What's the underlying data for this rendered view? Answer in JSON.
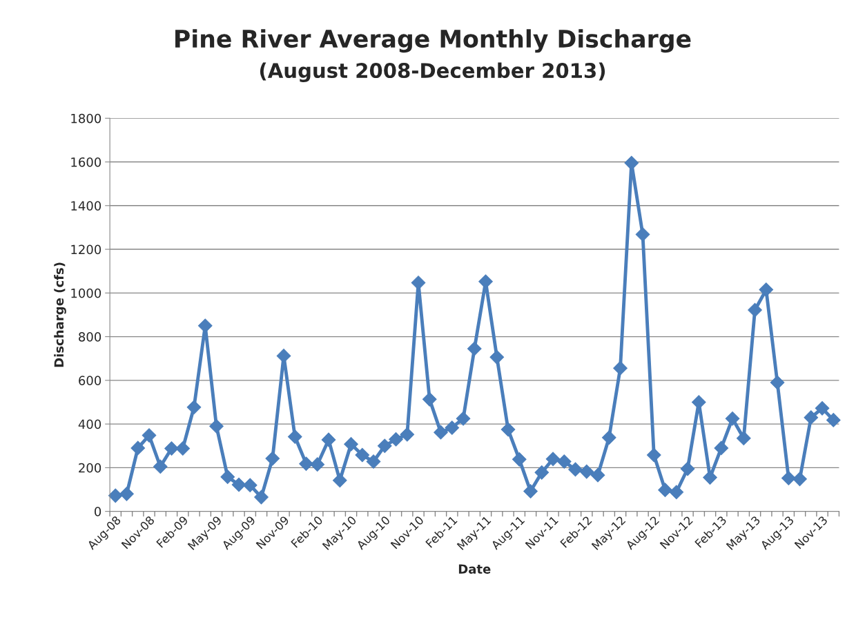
{
  "chart_data": {
    "type": "line",
    "title": "Pine River Average Monthly Discharge",
    "subtitle": "(August 2008-December 2013)",
    "xlabel": "Date",
    "ylabel": "Discharge (cfs)",
    "categories": [
      "Aug-08",
      null,
      null,
      "Nov-08",
      null,
      null,
      "Feb-09",
      null,
      null,
      "May-09",
      null,
      null,
      "Aug-09",
      null,
      null,
      "Nov-09",
      null,
      null,
      "Feb-10",
      null,
      null,
      "May-10",
      null,
      null,
      "Aug-10",
      null,
      null,
      "Nov-10",
      null,
      null,
      "Feb-11",
      null,
      null,
      "May-11",
      null,
      null,
      "Aug-11",
      null,
      null,
      "Nov-11",
      null,
      null,
      "Feb-12",
      null,
      null,
      "May-12",
      null,
      null,
      "Aug-12",
      null,
      null,
      "Nov-12",
      null,
      null,
      "Feb-13",
      null,
      null,
      "May-13",
      null,
      null,
      "Aug-13",
      null,
      null,
      "Nov-13",
      null
    ],
    "series": [
      {
        "color": "#4a7ebb",
        "values": [
          72,
          80,
          290,
          348,
          205,
          288,
          288,
          477,
          850,
          390,
          158,
          122,
          120,
          65,
          242,
          712,
          342,
          218,
          215,
          328,
          142,
          308,
          258,
          228,
          300,
          330,
          352,
          1047,
          513,
          362,
          383,
          425,
          745,
          1052,
          706,
          375,
          238,
          92,
          178,
          240,
          228,
          192,
          182,
          166,
          338,
          656,
          1595,
          1268,
          258,
          98,
          88,
          195,
          500,
          155,
          290,
          425,
          335,
          922,
          1015,
          590,
          152,
          148,
          430,
          472,
          418
        ]
      }
    ],
    "ylim": [
      0,
      1800
    ],
    "yticks": [
      0,
      200,
      400,
      600,
      800,
      1000,
      1200,
      1400,
      1600,
      1800
    ],
    "grid": "y",
    "marker": "diamond",
    "line_style": "solid"
  }
}
